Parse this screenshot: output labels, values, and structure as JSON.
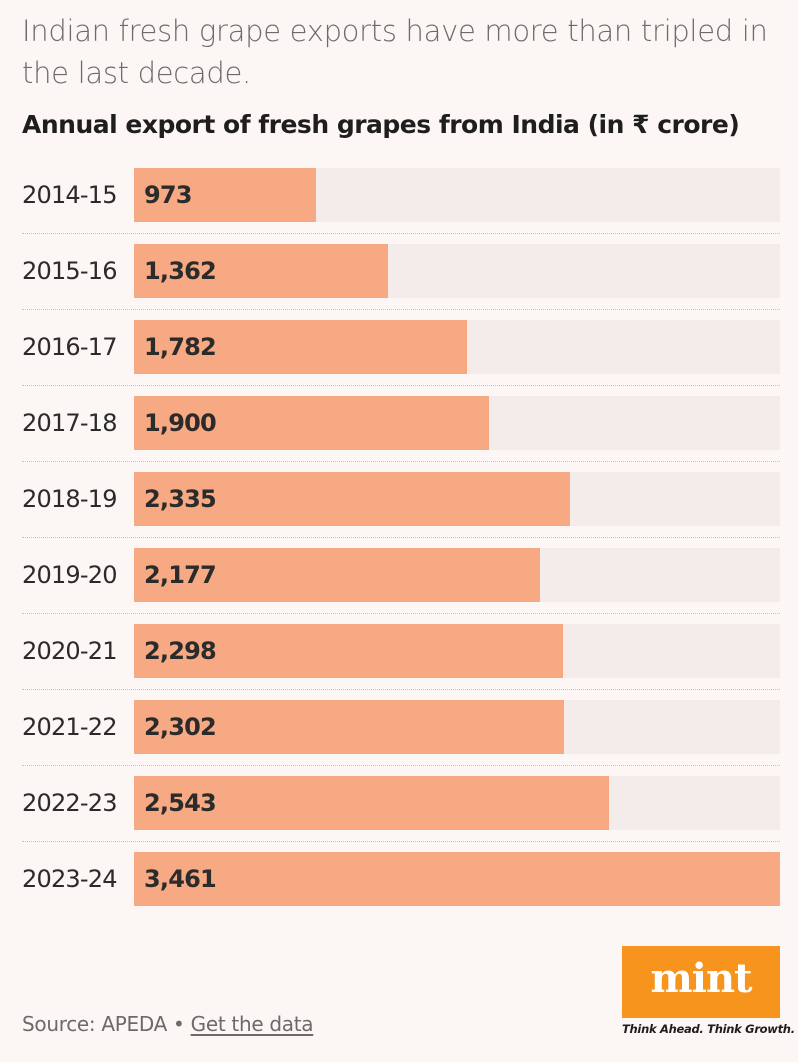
{
  "headline": "Indian fresh grape exports have more than tripled in the last decade.",
  "chart_data": {
    "type": "bar",
    "orientation": "horizontal",
    "title": "Annual export of fresh grapes from India (in ₹ crore)",
    "categories": [
      "2014-15",
      "2015-16",
      "2016-17",
      "2017-18",
      "2018-19",
      "2019-20",
      "2020-21",
      "2021-22",
      "2022-23",
      "2023-24"
    ],
    "values": [
      973,
      1362,
      1782,
      1900,
      2335,
      2177,
      2298,
      2302,
      2543,
      3461
    ],
    "value_labels": [
      "973",
      "1,362",
      "1,782",
      "1,900",
      "2,335",
      "2,177",
      "2,298",
      "2,302",
      "2,543",
      "3,461"
    ],
    "xlim": [
      0,
      3461
    ],
    "grid": false,
    "colors": {
      "bar": "#f6a982",
      "track": "#f3eceb"
    }
  },
  "footer": {
    "source_text": "Source: APEDA •",
    "link_text": "Get the data"
  },
  "brand": {
    "name": "mint",
    "tagline": "Think Ahead. Think Growth.",
    "color": "#f7941d"
  }
}
